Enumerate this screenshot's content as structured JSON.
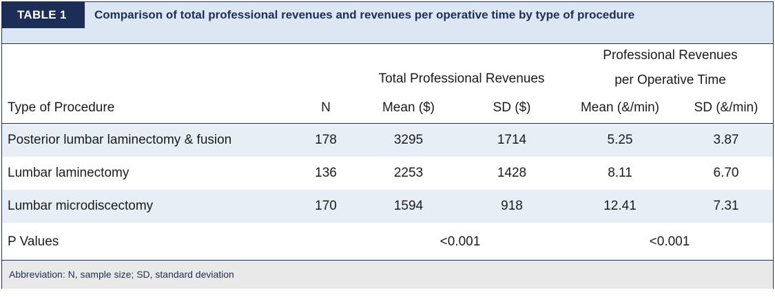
{
  "table": {
    "tag": "TABLE 1",
    "caption": "Comparison of total professional revenues and revenues per operative time by type of procedure",
    "group_total": "Total Professional Revenues",
    "group_per_time_line1": "Professional Revenues",
    "group_per_time_line2": "per Operative Time",
    "columns": [
      "Type of Procedure",
      "N",
      "Mean ($)",
      "SD ($)",
      "Mean (&/min)",
      "SD (&/min)"
    ],
    "rows": [
      [
        "Posterior lumbar laminectomy & fusion",
        "178",
        "3295",
        "1714",
        "5.25",
        "3.87"
      ],
      [
        "Lumbar laminectomy",
        "136",
        "2253",
        "1428",
        "8.11",
        "6.70"
      ],
      [
        "Lumbar microdiscectomy",
        "170",
        "1594",
        "918",
        "12.41",
        "7.31"
      ]
    ],
    "pvalues": {
      "label": "P Values",
      "total": "<0.001",
      "per_time": "<0.001"
    },
    "footnote": "Abbreviation: N, sample size; SD, standard deviation"
  }
}
